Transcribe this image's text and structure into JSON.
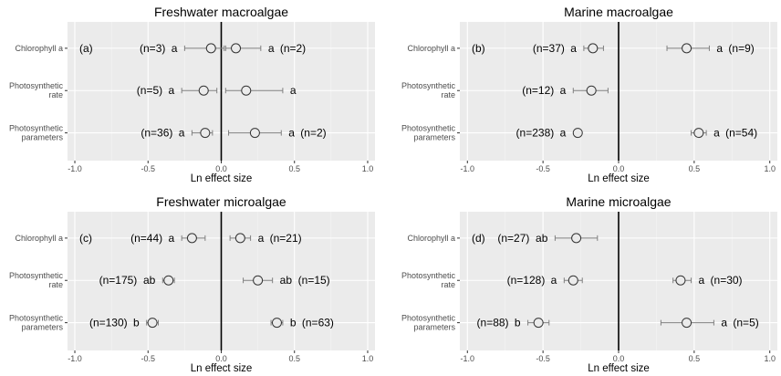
{
  "chart_data": [
    {
      "type": "scatter",
      "title": "Freshwater macroalgae",
      "panel_label": "(a)",
      "xlabel": "Ln effect size",
      "xlim": [
        -1.05,
        1.05
      ],
      "xticks": [
        -1.0,
        -0.5,
        0.0,
        0.5,
        1.0
      ],
      "xtick_labels": [
        "-1.0",
        "-0.5",
        "0.0",
        "0.5",
        "1.0"
      ],
      "categories": [
        "Chlorophyll a",
        "Photosynthetic rate",
        "Photosynthetic parameters"
      ],
      "category_labels": [
        [
          "Chlorophyll a"
        ],
        [
          "Photosynthetic",
          "rate"
        ],
        [
          "Photosynthetic",
          "parameters"
        ]
      ],
      "grid": true,
      "points": [
        {
          "category": 0,
          "side": "neg",
          "x": -0.07,
          "ci": [
            -0.25,
            0.02
          ],
          "n_label": "(n=3)",
          "letter": "a"
        },
        {
          "category": 0,
          "side": "pos",
          "x": 0.1,
          "ci": [
            0.03,
            0.27
          ],
          "n_label": "(n=2)",
          "letter": "a"
        },
        {
          "category": 1,
          "side": "neg",
          "x": -0.12,
          "ci": [
            -0.27,
            -0.03
          ],
          "n_label": "(n=5)",
          "letter": "a"
        },
        {
          "category": 1,
          "side": "pos",
          "x": 0.17,
          "ci": [
            0.03,
            0.42
          ],
          "n_label": "",
          "letter": "a"
        },
        {
          "category": 2,
          "side": "neg",
          "x": -0.11,
          "ci": [
            -0.2,
            -0.06
          ],
          "n_label": "(n=36)",
          "letter": "a"
        },
        {
          "category": 2,
          "side": "pos",
          "x": 0.23,
          "ci": [
            0.05,
            0.41
          ],
          "n_label": "(n=2)",
          "letter": "a"
        }
      ]
    },
    {
      "type": "scatter",
      "title": "Marine macroalgae",
      "panel_label": "(b)",
      "xlabel": "Ln effect size",
      "xlim": [
        -1.05,
        1.05
      ],
      "xticks": [
        -1.0,
        -0.5,
        0.0,
        0.5,
        1.0
      ],
      "xtick_labels": [
        "-1.0",
        "-0.5",
        "0.0",
        "0.5",
        "1.0"
      ],
      "categories": [
        "Chlorophyll a",
        "Photosynthetic rate",
        "Photosynthetic parameters"
      ],
      "category_labels": [
        [
          "Chlorophyll a"
        ],
        [
          "Photosynthetic",
          "rate"
        ],
        [
          "Photosynthetic",
          "parameters"
        ]
      ],
      "grid": true,
      "points": [
        {
          "category": 0,
          "side": "neg",
          "x": -0.17,
          "ci": [
            -0.23,
            -0.1
          ],
          "n_label": "(n=37)",
          "letter": "a"
        },
        {
          "category": 0,
          "side": "pos",
          "x": 0.45,
          "ci": [
            0.32,
            0.6
          ],
          "n_label": "(n=9)",
          "letter": "a"
        },
        {
          "category": 1,
          "side": "neg",
          "x": -0.18,
          "ci": [
            -0.3,
            -0.07
          ],
          "n_label": "(n=12)",
          "letter": "a"
        },
        {
          "category": 2,
          "side": "neg",
          "x": -0.27,
          "ci": [
            -0.29,
            -0.25
          ],
          "n_label": "(n=238)",
          "letter": "a"
        },
        {
          "category": 2,
          "side": "pos",
          "x": 0.53,
          "ci": [
            0.48,
            0.58
          ],
          "n_label": "(n=54)",
          "letter": "a"
        }
      ]
    },
    {
      "type": "scatter",
      "title": "Freshwater microalgae",
      "panel_label": "(c)",
      "xlabel": "Ln effect size",
      "xlim": [
        -1.05,
        1.05
      ],
      "xticks": [
        -1.0,
        -0.5,
        0.0,
        0.5,
        1.0
      ],
      "xtick_labels": [
        "-1.0",
        "-0.5",
        "0.0",
        "0.5",
        "1.0"
      ],
      "categories": [
        "Chlorophyll a",
        "Photosynthetic rate",
        "Photosynthetic parameters"
      ],
      "category_labels": [
        [
          "Chlorophyll a"
        ],
        [
          "Photosynthetic",
          "rate"
        ],
        [
          "Photosynthetic",
          "parameters"
        ]
      ],
      "grid": true,
      "points": [
        {
          "category": 0,
          "side": "neg",
          "x": -0.2,
          "ci": [
            -0.27,
            -0.11
          ],
          "n_label": "(n=44)",
          "letter": "a"
        },
        {
          "category": 0,
          "side": "pos",
          "x": 0.13,
          "ci": [
            0.06,
            0.2
          ],
          "n_label": "(n=21)",
          "letter": "a"
        },
        {
          "category": 1,
          "side": "neg",
          "x": -0.36,
          "ci": [
            -0.4,
            -0.32
          ],
          "n_label": "(n=175)",
          "letter": "ab"
        },
        {
          "category": 1,
          "side": "pos",
          "x": 0.25,
          "ci": [
            0.15,
            0.35
          ],
          "n_label": "(n=15)",
          "letter": "ab"
        },
        {
          "category": 2,
          "side": "neg",
          "x": -0.47,
          "ci": [
            -0.51,
            -0.43
          ],
          "n_label": "(n=130)",
          "letter": "b"
        },
        {
          "category": 2,
          "side": "pos",
          "x": 0.38,
          "ci": [
            0.34,
            0.42
          ],
          "n_label": "(n=63)",
          "letter": "b"
        }
      ]
    },
    {
      "type": "scatter",
      "title": "Marine microalgae",
      "panel_label": "(d)",
      "xlabel": "Ln effect size",
      "xlim": [
        -1.05,
        1.05
      ],
      "xticks": [
        -1.0,
        -0.5,
        0.0,
        0.5,
        1.0
      ],
      "xtick_labels": [
        "-1.0",
        "-0.5",
        "0.0",
        "0.5",
        "1.0"
      ],
      "categories": [
        "Chlorophyll a",
        "Photosynthetic rate",
        "Photosynthetic parameters"
      ],
      "category_labels": [
        [
          "Chlorophyll a"
        ],
        [
          "Photosynthetic",
          "rate"
        ],
        [
          "Photosynthetic",
          "parameters"
        ]
      ],
      "grid": true,
      "points": [
        {
          "category": 0,
          "side": "neg",
          "x": -0.28,
          "ci": [
            -0.42,
            -0.14
          ],
          "n_label": "(n=27)",
          "letter": "ab"
        },
        {
          "category": 1,
          "side": "neg",
          "x": -0.3,
          "ci": [
            -0.36,
            -0.24
          ],
          "n_label": "(n=128)",
          "letter": "a"
        },
        {
          "category": 1,
          "side": "pos",
          "x": 0.41,
          "ci": [
            0.36,
            0.48
          ],
          "n_label": "(n=30)",
          "letter": "a"
        },
        {
          "category": 2,
          "side": "neg",
          "x": -0.53,
          "ci": [
            -0.6,
            -0.46
          ],
          "n_label": "(n=88)",
          "letter": "b"
        },
        {
          "category": 2,
          "side": "pos",
          "x": 0.45,
          "ci": [
            0.28,
            0.63
          ],
          "n_label": "(n=5)",
          "letter": "a"
        }
      ]
    }
  ]
}
